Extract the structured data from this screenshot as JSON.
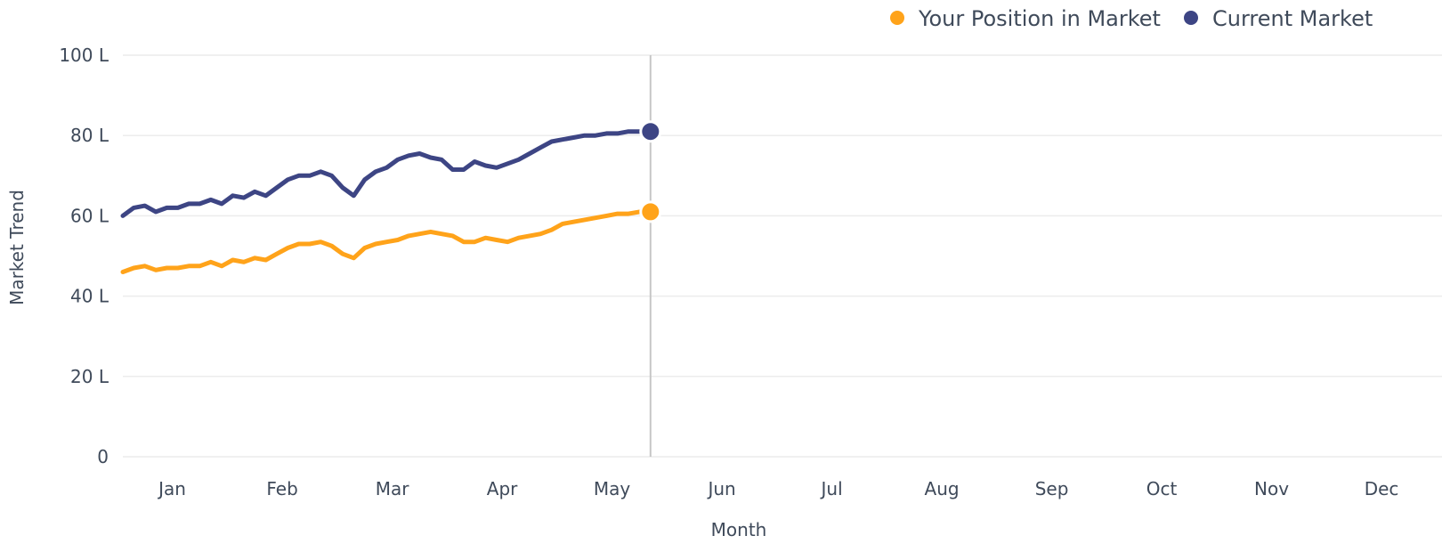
{
  "chart_data": {
    "type": "line",
    "title": "",
    "xlabel": "Month",
    "ylabel": "Market Trend",
    "y_unit_suffix": "L",
    "ylim": [
      0,
      100
    ],
    "yticks": [
      0,
      20,
      40,
      60,
      80,
      100
    ],
    "ytick_labels": [
      "0",
      "20 L",
      "40 L",
      "60 L",
      "80 L",
      "100 L"
    ],
    "xlim": [
      0,
      12
    ],
    "months": [
      "Jan",
      "Feb",
      "Mar",
      "Apr",
      "May",
      "Jun",
      "Jul",
      "Aug",
      "Sep",
      "Oct",
      "Nov",
      "Dec"
    ],
    "grid": true,
    "legend_position": "top-right",
    "current_marker_x": 4.8,
    "series": [
      {
        "name": "Your Position in Market",
        "color": "#ffa31a",
        "x": [
          0.0,
          0.1,
          0.2,
          0.3,
          0.4,
          0.5,
          0.6,
          0.7,
          0.8,
          0.9,
          1.0,
          1.1,
          1.2,
          1.3,
          1.4,
          1.5,
          1.6,
          1.7,
          1.8,
          1.9,
          2.0,
          2.1,
          2.2,
          2.3,
          2.4,
          2.5,
          2.6,
          2.7,
          2.8,
          2.9,
          3.0,
          3.1,
          3.2,
          3.3,
          3.4,
          3.5,
          3.6,
          3.7,
          3.8,
          3.9,
          4.0,
          4.1,
          4.2,
          4.3,
          4.4,
          4.5,
          4.6,
          4.7,
          4.8
        ],
        "values": [
          46,
          47,
          47.5,
          46.5,
          47,
          47,
          47.5,
          47.5,
          48.5,
          47.5,
          49,
          48.5,
          49.5,
          49,
          50.5,
          52,
          53,
          53,
          53.5,
          52.5,
          50.5,
          49.5,
          52,
          53,
          53.5,
          54,
          55,
          55.5,
          56,
          55.5,
          55,
          53.5,
          53.5,
          54.5,
          54,
          53.5,
          54.5,
          55,
          55.5,
          56.5,
          58,
          58.5,
          59,
          59.5,
          60,
          60.5,
          60.5,
          61,
          61
        ]
      },
      {
        "name": "Current Market",
        "color": "#3d4584",
        "x": [
          0.0,
          0.1,
          0.2,
          0.3,
          0.4,
          0.5,
          0.6,
          0.7,
          0.8,
          0.9,
          1.0,
          1.1,
          1.2,
          1.3,
          1.4,
          1.5,
          1.6,
          1.7,
          1.8,
          1.9,
          2.0,
          2.1,
          2.2,
          2.3,
          2.4,
          2.5,
          2.6,
          2.7,
          2.8,
          2.9,
          3.0,
          3.1,
          3.2,
          3.3,
          3.4,
          3.5,
          3.6,
          3.7,
          3.8,
          3.9,
          4.0,
          4.1,
          4.2,
          4.3,
          4.4,
          4.5,
          4.6,
          4.7,
          4.8
        ],
        "values": [
          60,
          62,
          62.5,
          61,
          62,
          62,
          63,
          63,
          64,
          63,
          65,
          64.5,
          66,
          65,
          67,
          69,
          70,
          70,
          71,
          70,
          67,
          65,
          69,
          71,
          72,
          74,
          75,
          75.5,
          74.5,
          74,
          71.5,
          71.5,
          73.5,
          72.5,
          72,
          73,
          74,
          75.5,
          77,
          78.5,
          79,
          79.5,
          80,
          80,
          80.5,
          80.5,
          81,
          81,
          81
        ]
      }
    ]
  }
}
